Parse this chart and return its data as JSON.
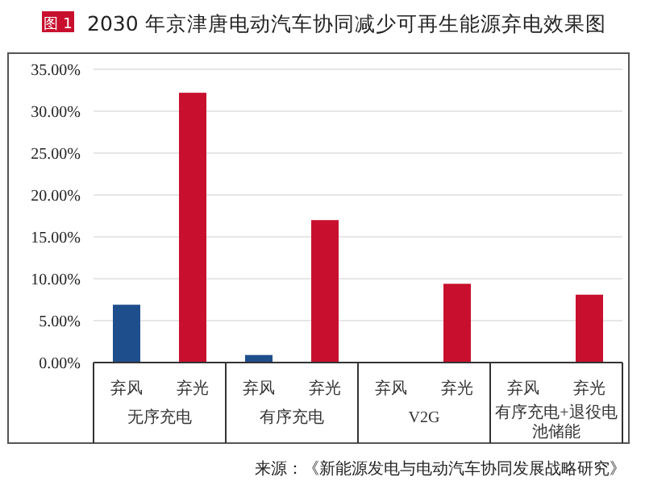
{
  "chart_data": {
    "type": "bar",
    "title": "2030 年京津唐电动汽车协同减少可再生能源弃电效果图",
    "annotations": [
      "图 1",
      "来源：《新能源发电与电动汽车协同发展战略研究》"
    ],
    "categories": [
      "无序充电",
      "有序充电",
      "V2G",
      "有序充电+退役电池储能"
    ],
    "series": [
      {
        "name": "弃风",
        "color": "#1f4e8c",
        "values": [
          6.9,
          0.9,
          0,
          0
        ]
      },
      {
        "name": "弃光",
        "color": "#c8102e",
        "values": [
          32.2,
          17.0,
          9.4,
          8.1
        ]
      }
    ],
    "ylim": [
      0,
      35
    ],
    "yticks": [
      {
        "value": 0,
        "label": "0.00%"
      },
      {
        "value": 5,
        "label": "5.00%"
      },
      {
        "value": 10,
        "label": "10.00%"
      },
      {
        "value": 15,
        "label": "15.00%"
      },
      {
        "value": 20,
        "label": "20.00%"
      },
      {
        "value": 25,
        "label": "25.00%"
      },
      {
        "value": 30,
        "label": "30.00%"
      },
      {
        "value": 35,
        "label": "35.00%"
      }
    ],
    "grid": "y"
  }
}
